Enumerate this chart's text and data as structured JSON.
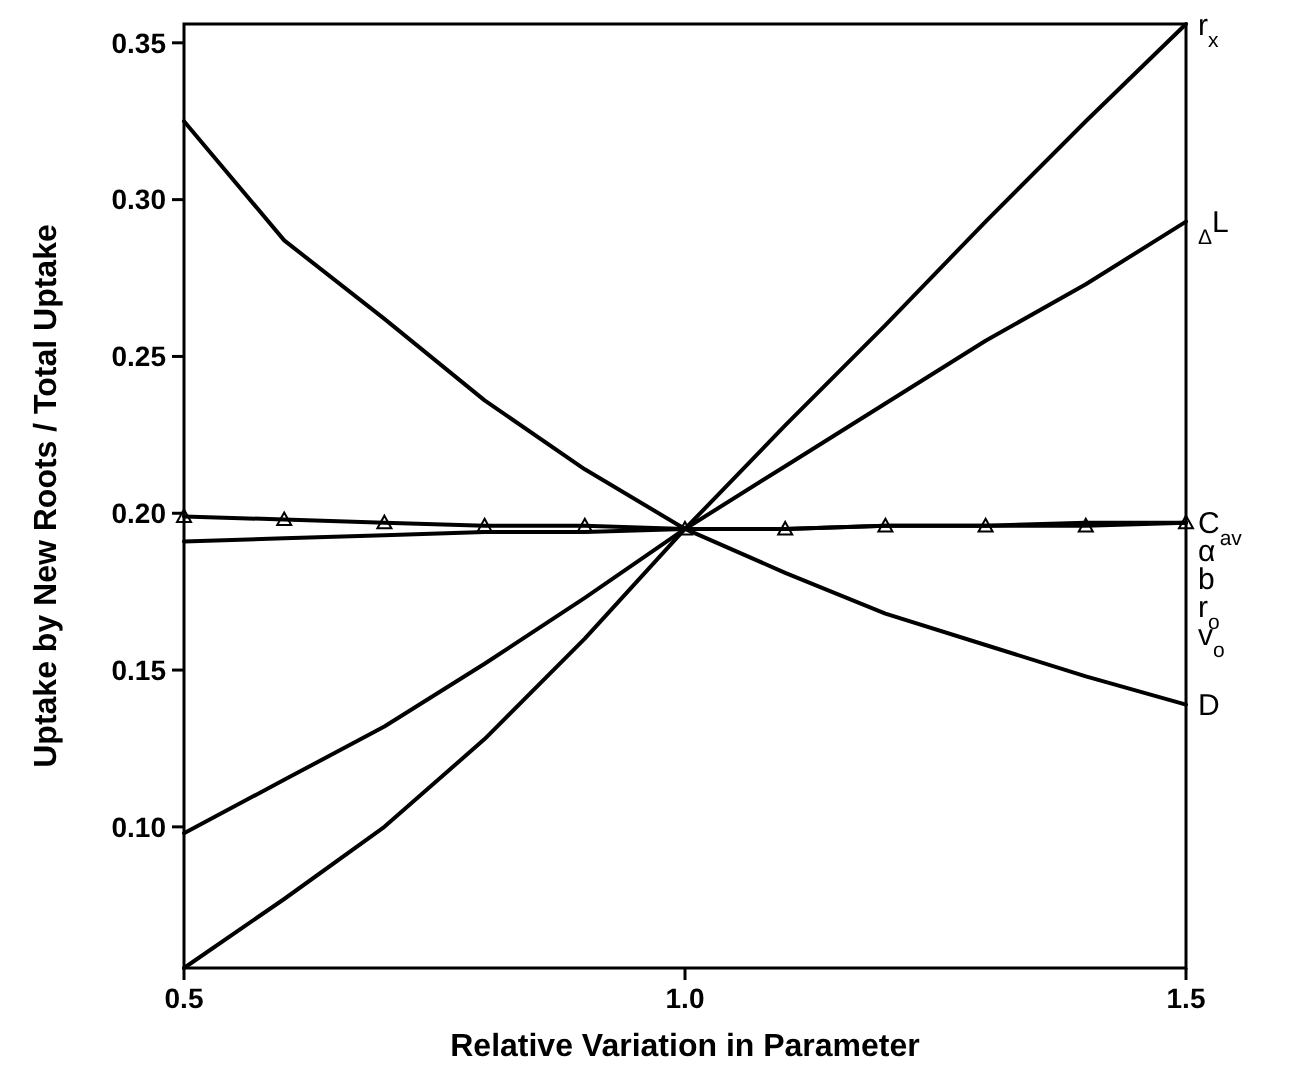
{
  "chart_data": {
    "type": "line",
    "xlabel": "Relative Variation in Parameter",
    "ylabel": "Uptake by New Roots / Total Uptake",
    "xlim": [
      0.5,
      1.5
    ],
    "xticks": [
      {
        "value": 0.5,
        "label": "0.5"
      },
      {
        "value": 1.0,
        "label": "1.0"
      },
      {
        "value": 1.5,
        "label": "1.5"
      }
    ],
    "ylim": [
      0.055,
      0.356
    ],
    "yticks": [
      {
        "value": 0.1,
        "label": "0.10"
      },
      {
        "value": 0.15,
        "label": "0.15"
      },
      {
        "value": 0.2,
        "label": "0.20"
      },
      {
        "value": 0.25,
        "label": "0.25"
      },
      {
        "value": 0.3,
        "label": "0.30"
      },
      {
        "value": 0.35,
        "label": "0.35"
      }
    ],
    "annotations": [
      "α",
      "b",
      "r$_{o}$",
      "v$_{o}$"
    ],
    "grid": false,
    "legend": false,
    "line_style": "solid",
    "marker": "none",
    "x": [
      0.5,
      0.6,
      0.7,
      0.8,
      0.9,
      1.0,
      1.1,
      1.2,
      1.3,
      1.4,
      1.5
    ],
    "series": [
      {
        "name": "r$_{x}$",
        "color": "#000000",
        "values": [
          0.055,
          0.077,
          0.1,
          0.128,
          0.16,
          0.195,
          0.228,
          0.26,
          0.293,
          0.325,
          0.356
        ]
      },
      {
        "name": "$_{Δ}$L",
        "color": "#000000",
        "values": [
          0.098,
          0.115,
          0.132,
          0.152,
          0.173,
          0.195,
          0.215,
          0.235,
          0.255,
          0.273,
          0.293
        ]
      },
      {
        "color": "#000000",
        "marker": "triangle",
        "values": [
          0.199,
          0.198,
          0.197,
          0.196,
          0.196,
          0.195,
          0.195,
          0.196,
          0.196,
          0.196,
          0.197
        ]
      },
      {
        "name": "C$_{av}$",
        "color": "#000000",
        "values": [
          0.191,
          0.192,
          0.193,
          0.194,
          0.194,
          0.195,
          0.195,
          0.196,
          0.196,
          0.197,
          0.197
        ]
      },
      {
        "name": "D",
        "color": "#000000",
        "values": [
          0.325,
          0.287,
          0.262,
          0.236,
          0.214,
          0.195,
          0.181,
          0.168,
          0.158,
          0.148,
          0.139
        ]
      }
    ]
  }
}
